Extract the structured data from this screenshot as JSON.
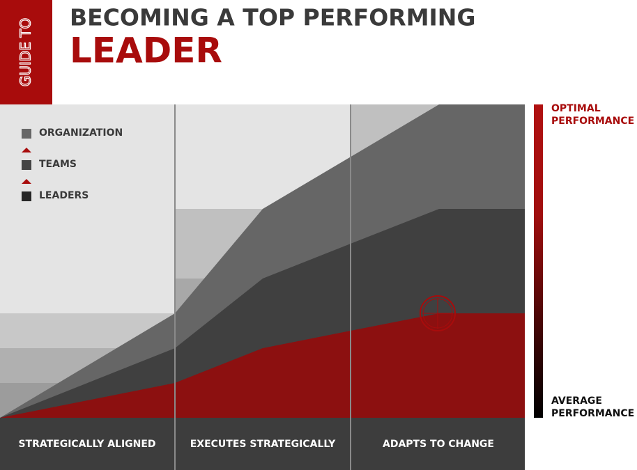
{
  "header": {
    "tab": "GUIDE TO",
    "title": "BECOMING A TOP PERFORMING",
    "subtitle": "LEADER"
  },
  "legend": [
    "ORGANIZATION",
    "TEAMS",
    "LEADERS"
  ],
  "columns": [
    "STRATEGICALLY ALIGNED",
    "EXECUTES STRATEGICALLY",
    "ADAPTS TO CHANGE"
  ],
  "scale": {
    "top": [
      "OPTIMAL",
      "PERFORMANCE"
    ],
    "bottom": [
      "AVERAGE",
      "PERFORMANCE"
    ]
  }
}
